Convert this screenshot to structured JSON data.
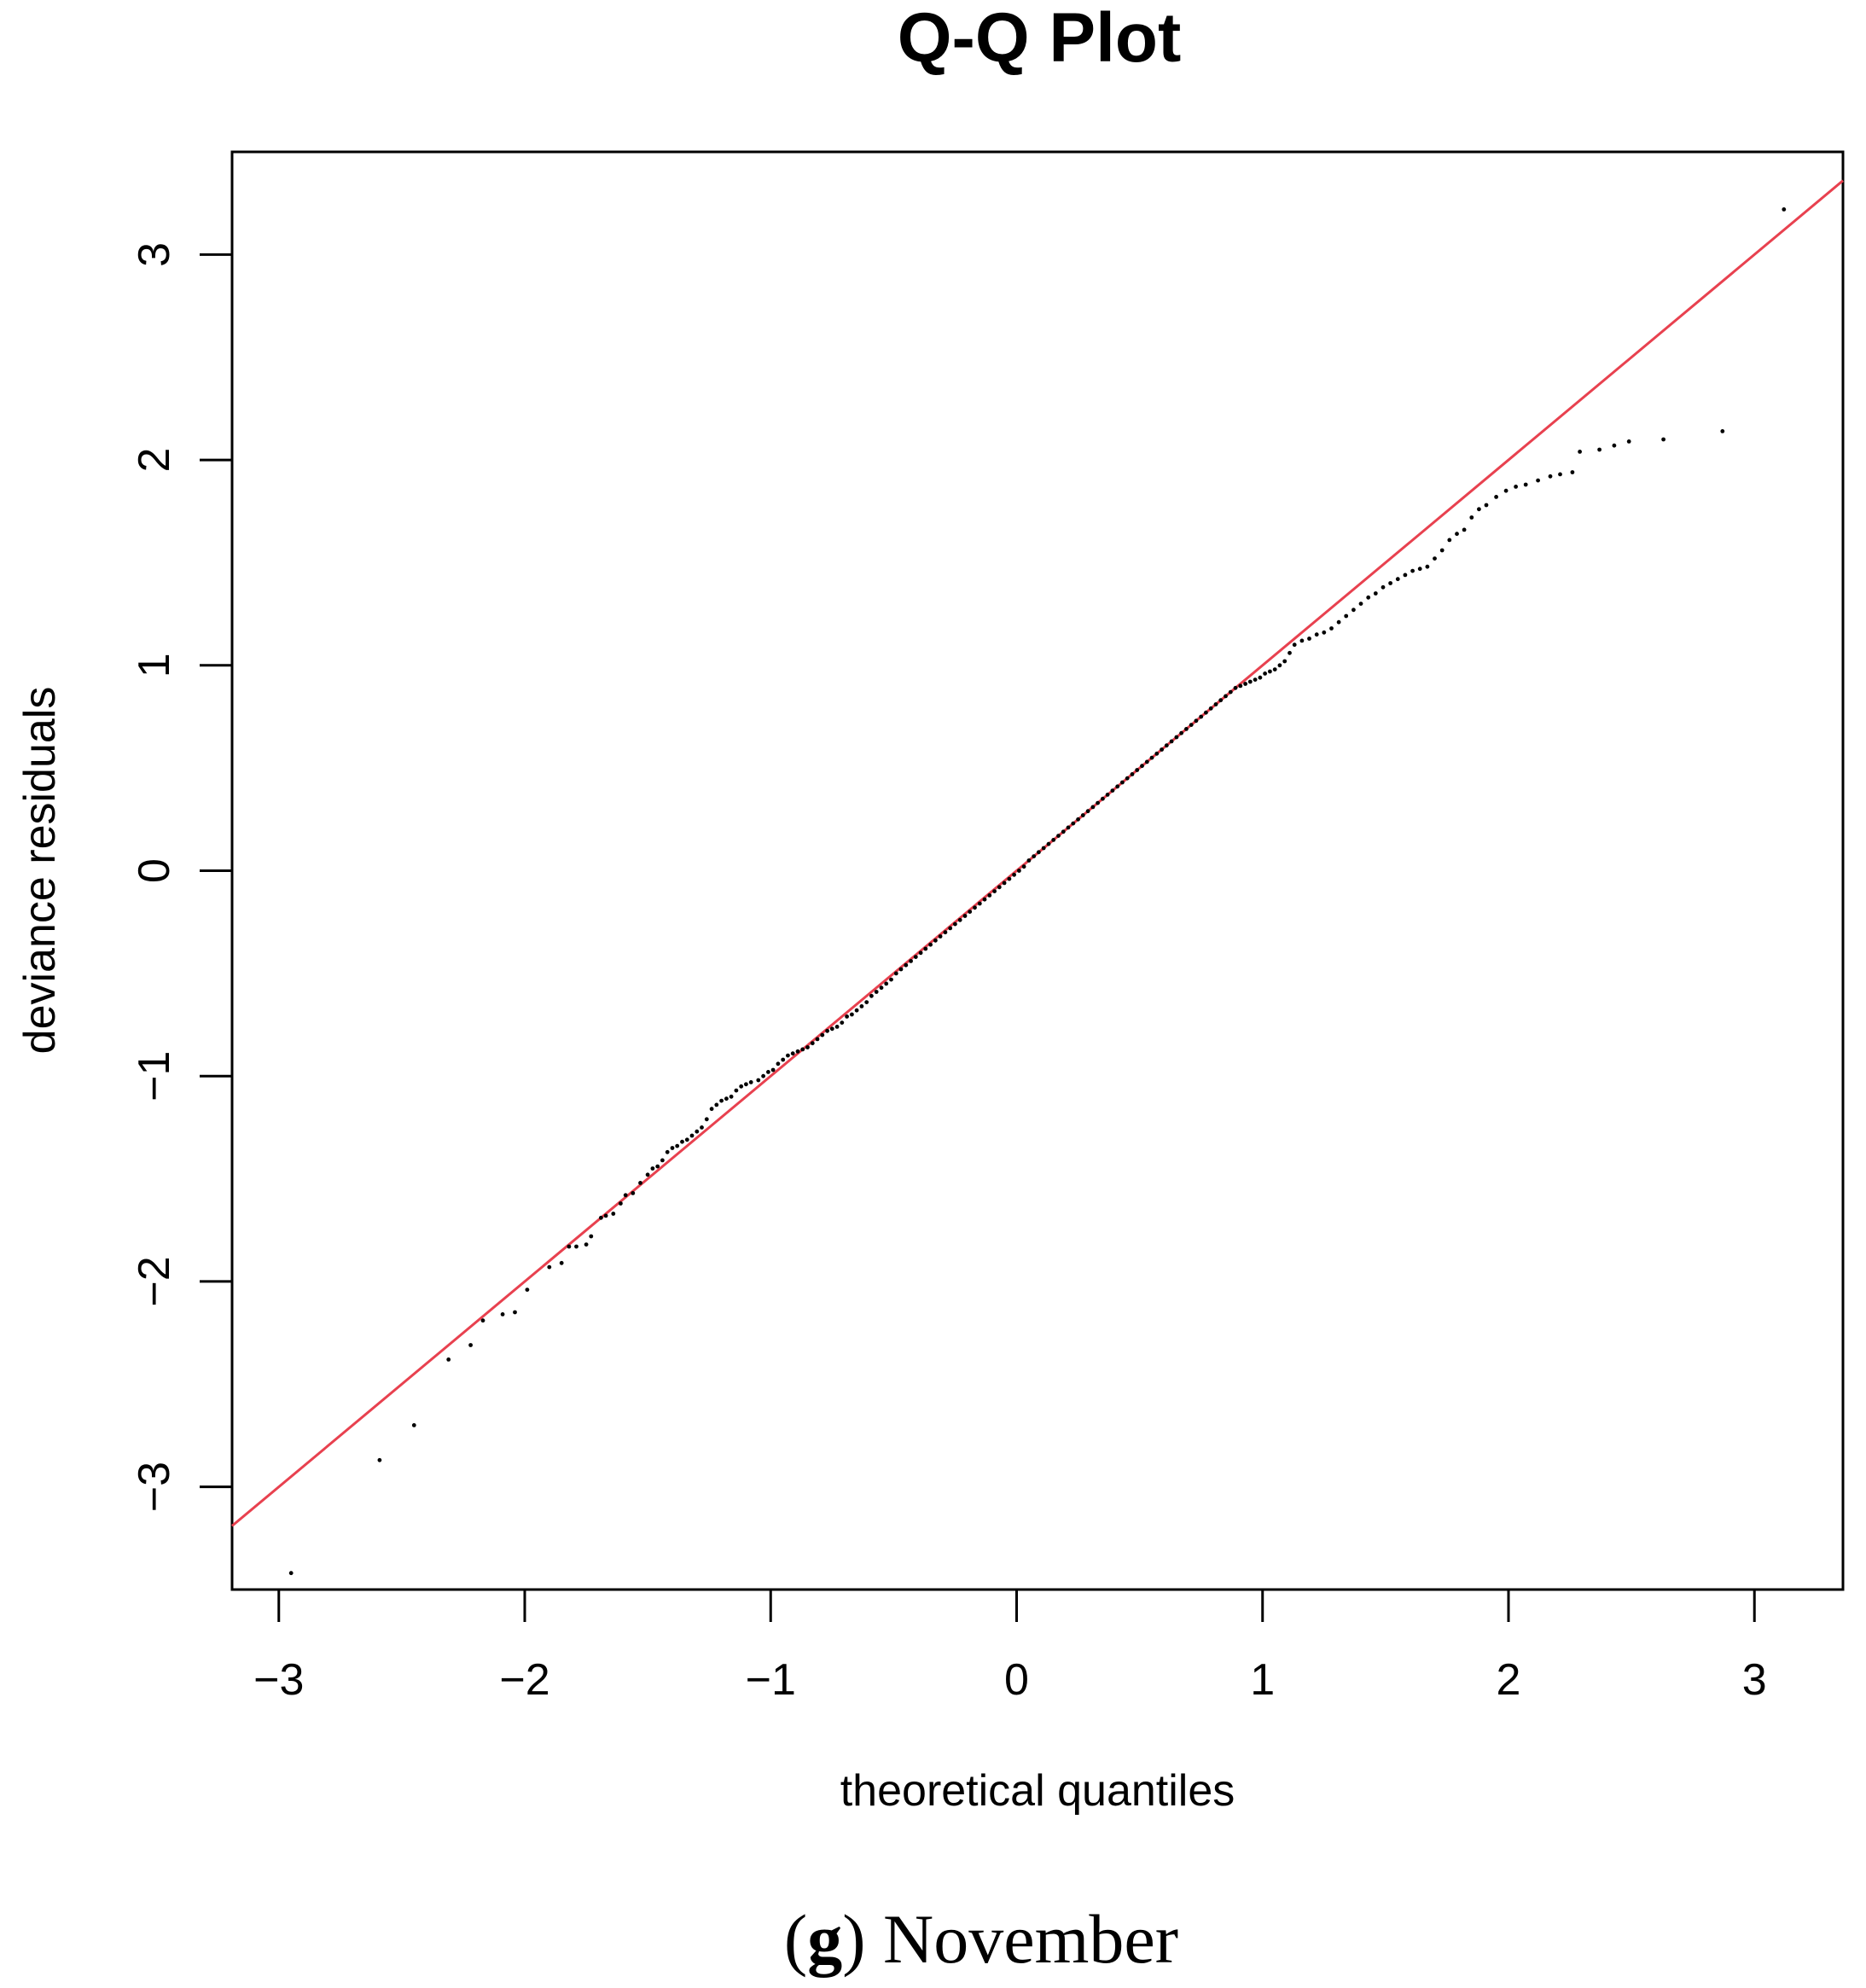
{
  "caption": {
    "letter": "g",
    "text": "November"
  },
  "chart_data": {
    "type": "scatter",
    "title": "Q-Q Plot",
    "xlabel": "theoretical quantiles",
    "ylabel": "deviance residuals",
    "xlim": [
      -3.19,
      3.36
    ],
    "ylim": [
      -3.5,
      3.5
    ],
    "xticks": [
      -3,
      -2,
      -1,
      0,
      1,
      2,
      3
    ],
    "yticks": [
      -3,
      -2,
      -1,
      0,
      1,
      2,
      3
    ],
    "xtick_labels": [
      "−3",
      "−2",
      "−1",
      "0",
      "1",
      "2",
      "3"
    ],
    "ytick_labels": [
      "−3",
      "−2",
      "−1",
      "0",
      "1",
      "2",
      "3"
    ],
    "reference_line": {
      "intercept": 0,
      "slope": 1,
      "color": "#e8414f"
    },
    "point_color": "#000000",
    "grid": false,
    "points": [
      [
        -2.95,
        -3.42
      ],
      [
        -2.59,
        -2.87
      ],
      [
        -2.45,
        -2.7
      ],
      [
        -2.31,
        -2.38
      ],
      [
        -2.22,
        -2.31
      ],
      [
        -2.17,
        -2.19
      ],
      [
        -2.09,
        -2.16
      ],
      [
        -2.04,
        -2.15
      ],
      [
        -1.99,
        -2.04
      ],
      [
        -1.9,
        -1.93
      ],
      [
        -1.85,
        -1.91
      ],
      [
        -1.82,
        -1.83
      ],
      [
        -1.79,
        -1.83
      ],
      [
        -1.75,
        -1.82
      ],
      [
        -1.73,
        -1.78
      ],
      [
        -1.69,
        -1.69
      ],
      [
        -1.67,
        -1.68
      ],
      [
        -1.64,
        -1.67
      ],
      [
        -1.61,
        -1.62
      ],
      [
        -1.59,
        -1.58
      ],
      [
        -1.56,
        -1.57
      ],
      [
        -1.53,
        -1.52
      ],
      [
        -1.5,
        -1.48
      ],
      [
        -1.48,
        -1.45
      ],
      [
        -1.46,
        -1.44
      ],
      [
        -1.44,
        -1.41
      ],
      [
        -1.42,
        -1.37
      ],
      [
        -1.4,
        -1.35
      ],
      [
        -1.38,
        -1.34
      ],
      [
        -1.36,
        -1.32
      ],
      [
        -1.34,
        -1.31
      ],
      [
        -1.32,
        -1.29
      ],
      [
        -1.3,
        -1.27
      ],
      [
        -1.28,
        -1.25
      ],
      [
        -1.26,
        -1.21
      ],
      [
        -1.24,
        -1.16
      ],
      [
        -1.22,
        -1.14
      ],
      [
        -1.2,
        -1.12
      ],
      [
        -1.18,
        -1.11
      ],
      [
        -1.16,
        -1.1
      ],
      [
        -1.14,
        -1.07
      ],
      [
        -1.12,
        -1.05
      ],
      [
        -1.1,
        -1.04
      ],
      [
        -1.08,
        -1.03
      ],
      [
        -1.05,
        -1.02
      ],
      [
        -1.03,
        -1.0
      ],
      [
        -1.01,
        -0.98
      ],
      [
        -0.99,
        -0.97
      ],
      [
        -0.97,
        -0.94
      ],
      [
        -0.95,
        -0.92
      ],
      [
        -0.93,
        -0.9
      ],
      [
        -0.91,
        -0.89
      ],
      [
        -0.89,
        -0.88
      ],
      [
        -0.87,
        -0.87
      ],
      [
        -0.85,
        -0.86
      ],
      [
        -0.83,
        -0.84
      ],
      [
        -0.81,
        -0.82
      ],
      [
        -0.79,
        -0.8
      ],
      [
        -0.77,
        -0.78
      ],
      [
        -0.75,
        -0.77
      ],
      [
        -0.73,
        -0.76
      ],
      [
        -0.71,
        -0.74
      ],
      [
        -0.69,
        -0.71
      ],
      [
        -0.67,
        -0.7
      ],
      [
        -0.65,
        -0.68
      ],
      [
        -0.63,
        -0.66
      ],
      [
        -0.61,
        -0.64
      ],
      [
        -0.59,
        -0.61
      ],
      [
        -0.57,
        -0.59
      ],
      [
        -0.55,
        -0.57
      ],
      [
        -0.53,
        -0.55
      ],
      [
        -0.51,
        -0.53
      ],
      [
        -0.49,
        -0.5
      ],
      [
        -0.47,
        -0.48
      ],
      [
        -0.45,
        -0.46
      ],
      [
        -0.43,
        -0.44
      ],
      [
        -0.41,
        -0.42
      ],
      [
        -0.39,
        -0.4
      ],
      [
        -0.37,
        -0.38
      ],
      [
        -0.35,
        -0.36
      ],
      [
        -0.33,
        -0.34
      ],
      [
        -0.31,
        -0.32
      ],
      [
        -0.29,
        -0.3
      ],
      [
        -0.27,
        -0.28
      ],
      [
        -0.25,
        -0.26
      ],
      [
        -0.23,
        -0.24
      ],
      [
        -0.21,
        -0.22
      ],
      [
        -0.19,
        -0.2
      ],
      [
        -0.17,
        -0.18
      ],
      [
        -0.15,
        -0.16
      ],
      [
        -0.13,
        -0.14
      ],
      [
        -0.11,
        -0.12
      ],
      [
        -0.09,
        -0.1
      ],
      [
        -0.07,
        -0.08
      ],
      [
        -0.05,
        -0.06
      ],
      [
        -0.03,
        -0.04
      ],
      [
        -0.01,
        -0.02
      ],
      [
        0.01,
        0.0
      ],
      [
        0.03,
        0.02
      ],
      [
        0.05,
        0.05
      ],
      [
        0.07,
        0.07
      ],
      [
        0.09,
        0.09
      ],
      [
        0.11,
        0.11
      ],
      [
        0.13,
        0.13
      ],
      [
        0.15,
        0.15
      ],
      [
        0.17,
        0.17
      ],
      [
        0.19,
        0.19
      ],
      [
        0.21,
        0.21
      ],
      [
        0.23,
        0.23
      ],
      [
        0.25,
        0.25
      ],
      [
        0.27,
        0.27
      ],
      [
        0.29,
        0.29
      ],
      [
        0.31,
        0.31
      ],
      [
        0.33,
        0.33
      ],
      [
        0.35,
        0.35
      ],
      [
        0.37,
        0.37
      ],
      [
        0.39,
        0.39
      ],
      [
        0.41,
        0.41
      ],
      [
        0.43,
        0.43
      ],
      [
        0.45,
        0.45
      ],
      [
        0.47,
        0.47
      ],
      [
        0.49,
        0.49
      ],
      [
        0.51,
        0.51
      ],
      [
        0.53,
        0.53
      ],
      [
        0.55,
        0.55
      ],
      [
        0.57,
        0.57
      ],
      [
        0.59,
        0.59
      ],
      [
        0.61,
        0.61
      ],
      [
        0.63,
        0.63
      ],
      [
        0.65,
        0.65
      ],
      [
        0.67,
        0.67
      ],
      [
        0.69,
        0.69
      ],
      [
        0.71,
        0.71
      ],
      [
        0.73,
        0.73
      ],
      [
        0.75,
        0.75
      ],
      [
        0.77,
        0.77
      ],
      [
        0.79,
        0.79
      ],
      [
        0.81,
        0.81
      ],
      [
        0.83,
        0.83
      ],
      [
        0.85,
        0.85
      ],
      [
        0.87,
        0.87
      ],
      [
        0.89,
        0.89
      ],
      [
        0.91,
        0.9
      ],
      [
        0.93,
        0.91
      ],
      [
        0.95,
        0.92
      ],
      [
        0.97,
        0.93
      ],
      [
        0.99,
        0.94
      ],
      [
        1.01,
        0.96
      ],
      [
        1.03,
        0.97
      ],
      [
        1.05,
        0.98
      ],
      [
        1.07,
        1.0
      ],
      [
        1.09,
        1.02
      ],
      [
        1.11,
        1.06
      ],
      [
        1.13,
        1.1
      ],
      [
        1.16,
        1.12
      ],
      [
        1.19,
        1.13
      ],
      [
        1.22,
        1.15
      ],
      [
        1.25,
        1.16
      ],
      [
        1.28,
        1.18
      ],
      [
        1.31,
        1.21
      ],
      [
        1.34,
        1.24
      ],
      [
        1.37,
        1.27
      ],
      [
        1.4,
        1.3
      ],
      [
        1.43,
        1.33
      ],
      [
        1.46,
        1.35
      ],
      [
        1.49,
        1.38
      ],
      [
        1.52,
        1.4
      ],
      [
        1.55,
        1.42
      ],
      [
        1.58,
        1.44
      ],
      [
        1.61,
        1.46
      ],
      [
        1.64,
        1.47
      ],
      [
        1.67,
        1.48
      ],
      [
        1.7,
        1.52
      ],
      [
        1.73,
        1.56
      ],
      [
        1.76,
        1.61
      ],
      [
        1.79,
        1.64
      ],
      [
        1.82,
        1.66
      ],
      [
        1.85,
        1.72
      ],
      [
        1.88,
        1.76
      ],
      [
        1.91,
        1.78
      ],
      [
        1.95,
        1.82
      ],
      [
        1.99,
        1.85
      ],
      [
        2.03,
        1.87
      ],
      [
        2.07,
        1.88
      ],
      [
        2.12,
        1.9
      ],
      [
        2.17,
        1.92
      ],
      [
        2.21,
        1.93
      ],
      [
        2.26,
        1.94
      ],
      [
        2.29,
        2.04
      ],
      [
        2.37,
        2.05
      ],
      [
        2.43,
        2.07
      ],
      [
        2.49,
        2.09
      ],
      [
        2.63,
        2.1
      ],
      [
        2.87,
        2.14
      ],
      [
        3.12,
        3.22
      ]
    ]
  }
}
